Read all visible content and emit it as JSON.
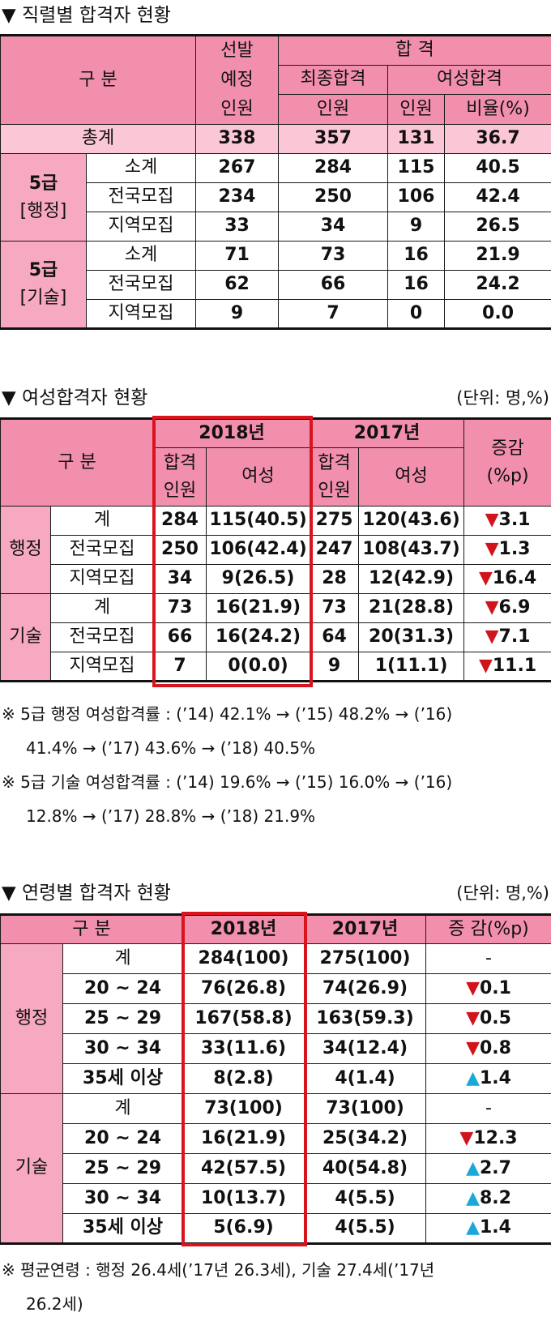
{
  "section1": {
    "title": "▼ 직렬별 합격자 현황",
    "hdr_category": "구 분",
    "hdr_planned": [
      "선발",
      "예정",
      "인원"
    ],
    "hdr_pass": "합 격",
    "hdr_final": "최종합격",
    "hdr_women": "여성합격",
    "hdr_people": "인원",
    "hdr_ratio": "비율(%)",
    "total": {
      "label": "총계",
      "values": [
        "338",
        "357",
        "131",
        "36.7"
      ]
    },
    "groups": [
      {
        "label": [
          "5급",
          "[행정]"
        ],
        "rows": [
          {
            "label": "소계",
            "values": [
              "267",
              "284",
              "115",
              "40.5"
            ]
          },
          {
            "label": "전국모집",
            "values": [
              "234",
              "250",
              "106",
              "42.4"
            ]
          },
          {
            "label": "지역모집",
            "values": [
              "33",
              "34",
              "9",
              "26.5"
            ]
          }
        ]
      },
      {
        "label": [
          "5급",
          "[기술]"
        ],
        "rows": [
          {
            "label": "소계",
            "values": [
              "71",
              "73",
              "16",
              "21.9"
            ]
          },
          {
            "label": "전국모집",
            "values": [
              "62",
              "66",
              "16",
              "24.2"
            ]
          },
          {
            "label": "지역모집",
            "values": [
              "9",
              "7",
              "0",
              "0.0"
            ]
          }
        ]
      }
    ]
  },
  "section2": {
    "title": "▼ 여성합격자 현황",
    "unit": "(단위: 명,%)",
    "hdr_category": "구 분",
    "year_2018": "2018년",
    "year_2017": "2017년",
    "hdr_pass_people": [
      "합격",
      "인원"
    ],
    "hdr_women": "여성",
    "hdr_change": [
      "증감",
      "(%p)"
    ],
    "groups": [
      {
        "label": "행정",
        "rows": [
          {
            "label": "계",
            "values": [
              "284",
              "115(40.5)",
              "275",
              "120(43.6)"
            ],
            "change": "3.1",
            "dir": "down"
          },
          {
            "label": "전국모집",
            "values": [
              "250",
              "106(42.4)",
              "247",
              "108(43.7)"
            ],
            "change": "1.3",
            "dir": "down"
          },
          {
            "label": "지역모집",
            "values": [
              "34",
              "9(26.5)",
              "28",
              "12(42.9)"
            ],
            "change": "16.4",
            "dir": "down"
          }
        ]
      },
      {
        "label": "기술",
        "rows": [
          {
            "label": "계",
            "values": [
              "73",
              "16(21.9)",
              "73",
              "21(28.8)"
            ],
            "change": "6.9",
            "dir": "down"
          },
          {
            "label": "전국모집",
            "values": [
              "66",
              "16(24.2)",
              "64",
              "20(31.3)"
            ],
            "change": "7.1",
            "dir": "down"
          },
          {
            "label": "지역모집",
            "values": [
              "7",
              "0(0.0)",
              "9",
              "1(11.1)"
            ],
            "change": "11.1",
            "dir": "down"
          }
        ]
      }
    ],
    "notes": [
      [
        "※ 5급 행정 여성합격률 : (’14) 42.1% → (’15) 48.2% → (’16)",
        "41.4% → (’17) 43.6% → (’18) 40.5%"
      ],
      [
        "※ 5급 기술 여성합격률 : (’14) 19.6% → (’15) 16.0% → (’16)",
        "12.8% → (’17) 28.8% → (’18) 21.9%"
      ]
    ]
  },
  "section3": {
    "title": "▼ 연령별 합격자 현황",
    "unit": "(단위: 명,%)",
    "hdr_category": "구 분",
    "year_2018": "2018년",
    "year_2017": "2017년",
    "hdr_change": "증 감(%p)",
    "groups": [
      {
        "label": "행정",
        "rows": [
          {
            "label": "계",
            "v2018": "284(100)",
            "v2017": "275(100)",
            "change": "-",
            "dir": "none"
          },
          {
            "label": "20 ~ 24",
            "v2018": "76(26.8)",
            "v2017": "74(26.9)",
            "change": "0.1",
            "dir": "down"
          },
          {
            "label": "25 ~ 29",
            "v2018": "167(58.8)",
            "v2017": "163(59.3)",
            "change": "0.5",
            "dir": "down"
          },
          {
            "label": "30 ~ 34",
            "v2018": "33(11.6)",
            "v2017": "34(12.4)",
            "change": "0.8",
            "dir": "down"
          },
          {
            "label": "35세 이상",
            "v2018": "8(2.8)",
            "v2017": "4(1.4)",
            "change": "1.4",
            "dir": "up"
          }
        ]
      },
      {
        "label": "기술",
        "rows": [
          {
            "label": "계",
            "v2018": "73(100)",
            "v2017": "73(100)",
            "change": "-",
            "dir": "none"
          },
          {
            "label": "20 ~ 24",
            "v2018": "16(21.9)",
            "v2017": "25(34.2)",
            "change": "12.3",
            "dir": "down"
          },
          {
            "label": "25 ~ 29",
            "v2018": "42(57.5)",
            "v2017": "40(54.8)",
            "change": "2.7",
            "dir": "up"
          },
          {
            "label": "30 ~ 34",
            "v2018": "10(13.7)",
            "v2017": "4(5.5)",
            "change": "8.2",
            "dir": "up"
          },
          {
            "label": "35세 이상",
            "v2018": "5(6.9)",
            "v2017": "4(5.5)",
            "change": "1.4",
            "dir": "up"
          }
        ]
      }
    ],
    "note": [
      "※ 평균연령 : 행정 26.4세(’17년 26.3세), 기술 27.4세(’17년",
      "26.2세)"
    ]
  },
  "symbols": {
    "down": "▼",
    "up": "▲"
  },
  "colors": {
    "header_pink": "#f28fad",
    "label_pink": "#f7a9c1",
    "total_pink": "#fbc7d6",
    "highlight_red": "#d8141e",
    "down_red": "#d1141b",
    "up_blue": "#19a8d8"
  }
}
